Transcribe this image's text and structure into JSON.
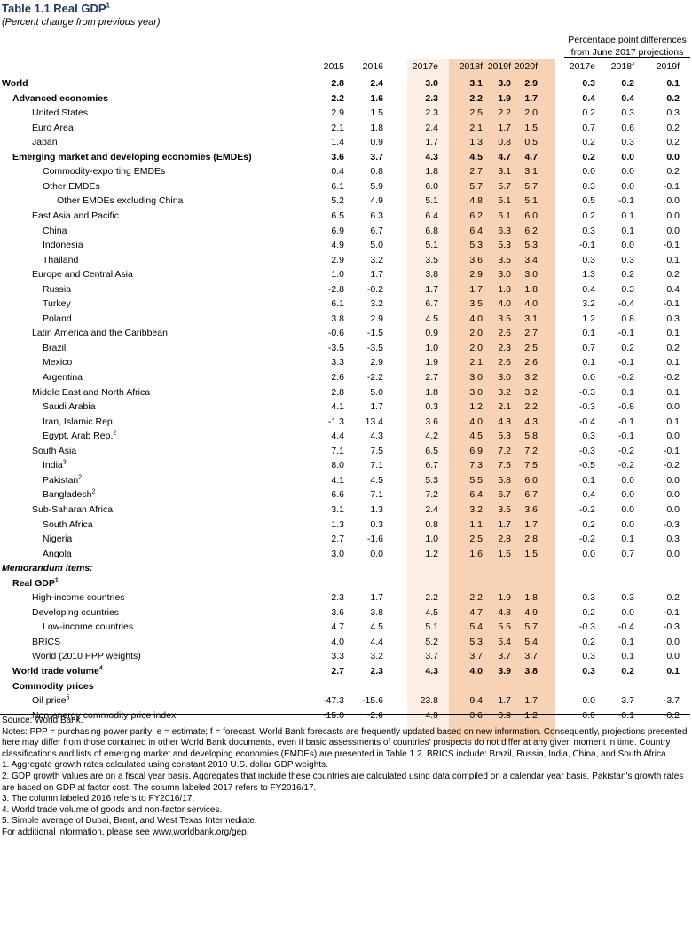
{
  "title": "Table 1.1 Real GDP",
  "title_sup": "1",
  "subtitle": "(Percent change from previous year)",
  "pp_header": "Percentage point differences from June 2017 projections",
  "columns": [
    "2015",
    "2016",
    "2017e",
    "2018f",
    "2019f",
    "2020f",
    "2017e",
    "2018f",
    "2019f"
  ],
  "rows": [
    {
      "label": "World",
      "indent": 0,
      "style": "bold",
      "values": [
        "2.8",
        "2.4",
        "3.0",
        "3.1",
        "3.0",
        "2.9",
        "0.3",
        "0.2",
        "0.1"
      ]
    },
    {
      "label": "Advanced economies",
      "indent": 1,
      "style": "bold",
      "values": [
        "2.2",
        "1.6",
        "2.3",
        "2.2",
        "1.9",
        "1.7",
        "0.4",
        "0.4",
        "0.2"
      ]
    },
    {
      "label": "United States",
      "indent": 2,
      "values": [
        "2.9",
        "1.5",
        "2.3",
        "2.5",
        "2.2",
        "2.0",
        "0.2",
        "0.3",
        "0.3"
      ]
    },
    {
      "label": "Euro Area",
      "indent": 2,
      "values": [
        "2.1",
        "1.8",
        "2.4",
        "2.1",
        "1.7",
        "1.5",
        "0.7",
        "0.6",
        "0.2"
      ]
    },
    {
      "label": "Japan",
      "indent": 2,
      "values": [
        "1.4",
        "0.9",
        "1.7",
        "1.3",
        "0.8",
        "0.5",
        "0.2",
        "0.3",
        "0.2"
      ]
    },
    {
      "label": "Emerging market and developing economies (EMDEs)",
      "indent": 1,
      "style": "bold",
      "values": [
        "3.6",
        "3.7",
        "4.3",
        "4.5",
        "4.7",
        "4.7",
        "0.2",
        "0.0",
        "0.0"
      ]
    },
    {
      "label": "Commodity-exporting EMDEs",
      "indent": 3,
      "values": [
        "0.4",
        "0.8",
        "1.8",
        "2.7",
        "3.1",
        "3.1",
        "0.0",
        "0.0",
        "0.2"
      ]
    },
    {
      "label": "Other EMDEs",
      "indent": 3,
      "values": [
        "6.1",
        "5.9",
        "6.0",
        "5.7",
        "5.7",
        "5.7",
        "0.3",
        "0.0",
        "-0.1"
      ]
    },
    {
      "label": "Other EMDEs excluding China",
      "indent": 4,
      "values": [
        "5.2",
        "4.9",
        "5.1",
        "4.8",
        "5.1",
        "5.1",
        "0.5",
        "-0.1",
        "0.0"
      ]
    },
    {
      "label": "East Asia and Pacific",
      "indent": 2,
      "values": [
        "6.5",
        "6.3",
        "6.4",
        "6.2",
        "6.1",
        "6.0",
        "0.2",
        "0.1",
        "0.0"
      ]
    },
    {
      "label": "China",
      "indent": 3,
      "values": [
        "6.9",
        "6.7",
        "6.8",
        "6.4",
        "6.3",
        "6.2",
        "0.3",
        "0.1",
        "0.0"
      ]
    },
    {
      "label": "Indonesia",
      "indent": 3,
      "values": [
        "4.9",
        "5.0",
        "5.1",
        "5.3",
        "5.3",
        "5.3",
        "-0.1",
        "0.0",
        "-0.1"
      ]
    },
    {
      "label": "Thailand",
      "indent": 3,
      "values": [
        "2.9",
        "3.2",
        "3.5",
        "3.6",
        "3.5",
        "3.4",
        "0.3",
        "0.3",
        "0.1"
      ]
    },
    {
      "label": "Europe and Central Asia",
      "indent": 2,
      "values": [
        "1.0",
        "1.7",
        "3.8",
        "2.9",
        "3.0",
        "3.0",
        "1.3",
        "0.2",
        "0.2"
      ]
    },
    {
      "label": "Russia",
      "indent": 3,
      "values": [
        "-2.8",
        "-0.2",
        "1.7",
        "1.7",
        "1.8",
        "1.8",
        "0.4",
        "0.3",
        "0.4"
      ]
    },
    {
      "label": "Turkey",
      "indent": 3,
      "values": [
        "6.1",
        "3.2",
        "6.7",
        "3.5",
        "4.0",
        "4.0",
        "3.2",
        "-0.4",
        "-0.1"
      ]
    },
    {
      "label": "Poland",
      "indent": 3,
      "values": [
        "3.8",
        "2.9",
        "4.5",
        "4.0",
        "3.5",
        "3.1",
        "1.2",
        "0.8",
        "0.3"
      ]
    },
    {
      "label": "Latin America and the Caribbean",
      "indent": 2,
      "values": [
        "-0.6",
        "-1.5",
        "0.9",
        "2.0",
        "2.6",
        "2.7",
        "0.1",
        "-0.1",
        "0.1"
      ]
    },
    {
      "label": "Brazil",
      "indent": 3,
      "values": [
        "-3.5",
        "-3.5",
        "1.0",
        "2.0",
        "2.3",
        "2.5",
        "0.7",
        "0.2",
        "0.2"
      ]
    },
    {
      "label": "Mexico",
      "indent": 3,
      "values": [
        "3.3",
        "2.9",
        "1.9",
        "2.1",
        "2.6",
        "2.6",
        "0.1",
        "-0.1",
        "0.1"
      ]
    },
    {
      "label": "Argentina",
      "indent": 3,
      "values": [
        "2.6",
        "-2.2",
        "2.7",
        "3.0",
        "3.0",
        "3.2",
        "0.0",
        "-0.2",
        "-0.2"
      ]
    },
    {
      "label": "Middle East and North Africa",
      "indent": 2,
      "values": [
        "2.8",
        "5.0",
        "1.8",
        "3.0",
        "3.2",
        "3.2",
        "-0.3",
        "0.1",
        "0.1"
      ]
    },
    {
      "label": "Saudi Arabia",
      "indent": 3,
      "values": [
        "4.1",
        "1.7",
        "0.3",
        "1.2",
        "2.1",
        "2.2",
        "-0.3",
        "-0.8",
        "0.0"
      ]
    },
    {
      "label": "Iran, Islamic Rep.",
      "indent": 3,
      "values": [
        "-1.3",
        "13.4",
        "3.6",
        "4.0",
        "4.3",
        "4.3",
        "-0.4",
        "-0.1",
        "0.1"
      ]
    },
    {
      "label": "Egypt, Arab Rep.",
      "sup": "2",
      "indent": 3,
      "values": [
        "4.4",
        "4.3",
        "4.2",
        "4.5",
        "5.3",
        "5.8",
        "0.3",
        "-0.1",
        "0.0"
      ]
    },
    {
      "label": "South Asia",
      "indent": 2,
      "values": [
        "7.1",
        "7.5",
        "6.5",
        "6.9",
        "7.2",
        "7.2",
        "-0.3",
        "-0.2",
        "-0.1"
      ]
    },
    {
      "label": "India",
      "sup": "3",
      "indent": 3,
      "values": [
        "8.0",
        "7.1",
        "6.7",
        "7.3",
        "7.5",
        "7.5",
        "-0.5",
        "-0.2",
        "-0.2"
      ]
    },
    {
      "label": "Pakistan",
      "sup": "2",
      "indent": 3,
      "values": [
        "4.1",
        "4.5",
        "5.3",
        "5.5",
        "5.8",
        "6.0",
        "0.1",
        "0.0",
        "0.0"
      ]
    },
    {
      "label": "Bangladesh",
      "sup": "2",
      "indent": 3,
      "values": [
        "6.6",
        "7.1",
        "7.2",
        "6.4",
        "6.7",
        "6.7",
        "0.4",
        "0.0",
        "0.0"
      ]
    },
    {
      "label": "Sub-Saharan Africa",
      "indent": 2,
      "values": [
        "3.1",
        "1.3",
        "2.4",
        "3.2",
        "3.5",
        "3.6",
        "-0.2",
        "0.0",
        "0.0"
      ]
    },
    {
      "label": "South Africa",
      "indent": 3,
      "values": [
        "1.3",
        "0.3",
        "0.8",
        "1.1",
        "1.7",
        "1.7",
        "0.2",
        "0.0",
        "-0.3"
      ]
    },
    {
      "label": "Nigeria",
      "indent": 3,
      "values": [
        "2.7",
        "-1.6",
        "1.0",
        "2.5",
        "2.8",
        "2.8",
        "-0.2",
        "0.1",
        "0.3"
      ]
    },
    {
      "label": "Angola",
      "indent": 3,
      "values": [
        "3.0",
        "0.0",
        "1.2",
        "1.6",
        "1.5",
        "1.5",
        "0.0",
        "0.7",
        "0.0"
      ]
    },
    {
      "label": "Memorandum items:",
      "indent": 0,
      "style": "bolditalic",
      "values": []
    },
    {
      "label": "Real GDP",
      "sup": "1",
      "indent": 1,
      "style": "bold",
      "values": []
    },
    {
      "label": "High-income countries",
      "indent": 2,
      "values": [
        "2.3",
        "1.7",
        "2.2",
        "2.2",
        "1.9",
        "1.8",
        "0.3",
        "0.3",
        "0.2"
      ]
    },
    {
      "label": "Developing countries",
      "indent": 2,
      "values": [
        "3.6",
        "3.8",
        "4.5",
        "4.7",
        "4.8",
        "4.9",
        "0.2",
        "0.0",
        "-0.1"
      ]
    },
    {
      "label": "Low-income countries",
      "indent": 3,
      "values": [
        "4.7",
        "4.5",
        "5.1",
        "5.4",
        "5.5",
        "5.7",
        "-0.3",
        "-0.4",
        "-0.3"
      ]
    },
    {
      "label": "BRICS",
      "indent": 2,
      "values": [
        "4.0",
        "4.4",
        "5.2",
        "5.3",
        "5.4",
        "5.4",
        "0.2",
        "0.1",
        "0.0"
      ]
    },
    {
      "label": "World (2010 PPP weights)",
      "indent": 2,
      "values": [
        "3.3",
        "3.2",
        "3.7",
        "3.7",
        "3.7",
        "3.7",
        "0.3",
        "0.1",
        "0.0"
      ]
    },
    {
      "label": "World trade volume",
      "sup": "4",
      "indent": 1,
      "style": "bold",
      "values": [
        "2.7",
        "2.3",
        "4.3",
        "4.0",
        "3.9",
        "3.8",
        "0.3",
        "0.2",
        "0.1"
      ]
    },
    {
      "label": "Commodity prices",
      "indent": 1,
      "style": "bold",
      "values": []
    },
    {
      "label": "Oil price",
      "sup": "5",
      "indent": 2,
      "values": [
        "-47.3",
        "-15.6",
        "23.8",
        "9.4",
        "1.7",
        "1.7",
        "0.0",
        "3.7",
        "-3.7"
      ]
    },
    {
      "label": "Non-energy commodity price index",
      "indent": 2,
      "values": [
        "-15.0",
        "-2.6",
        "4.9",
        "0.6",
        "0.8",
        "1.2",
        "0.9",
        "-0.1",
        "-0.2"
      ]
    }
  ],
  "notes": [
    "Source: World Bank.",
    "Notes: PPP = purchasing power parity; e = estimate; f = forecast. World Bank forecasts are frequently updated based on new information. Consequently, projections presented here may differ from those contained in other World Bank documents, even if basic assessments of countries' prospects do not differ at any given moment in time. Country classifications and lists of emerging market and developing economies (EMDEs) are presented in Table 1.2. BRICS include: Brazil, Russia, India, China, and South Africa.",
    "1. Aggregate growth rates calculated using constant 2010 U.S. dollar GDP weights.",
    "2. GDP growth values are on a fiscal year basis. Aggregates that include these countries are calculated using data compiled on a calendar year basis. Pakistan's growth rates are based on GDP at factor cost. The column labeled 2017 refers to FY2016/17.",
    "3. The column labeled 2016 refers to FY2016/17.",
    "4. World trade volume of goods and non-factor services.",
    "5. Simple average of Dubai, Brent, and West Texas Intermediate.",
    "For additional information, please see www.worldbank.org/gep."
  ]
}
